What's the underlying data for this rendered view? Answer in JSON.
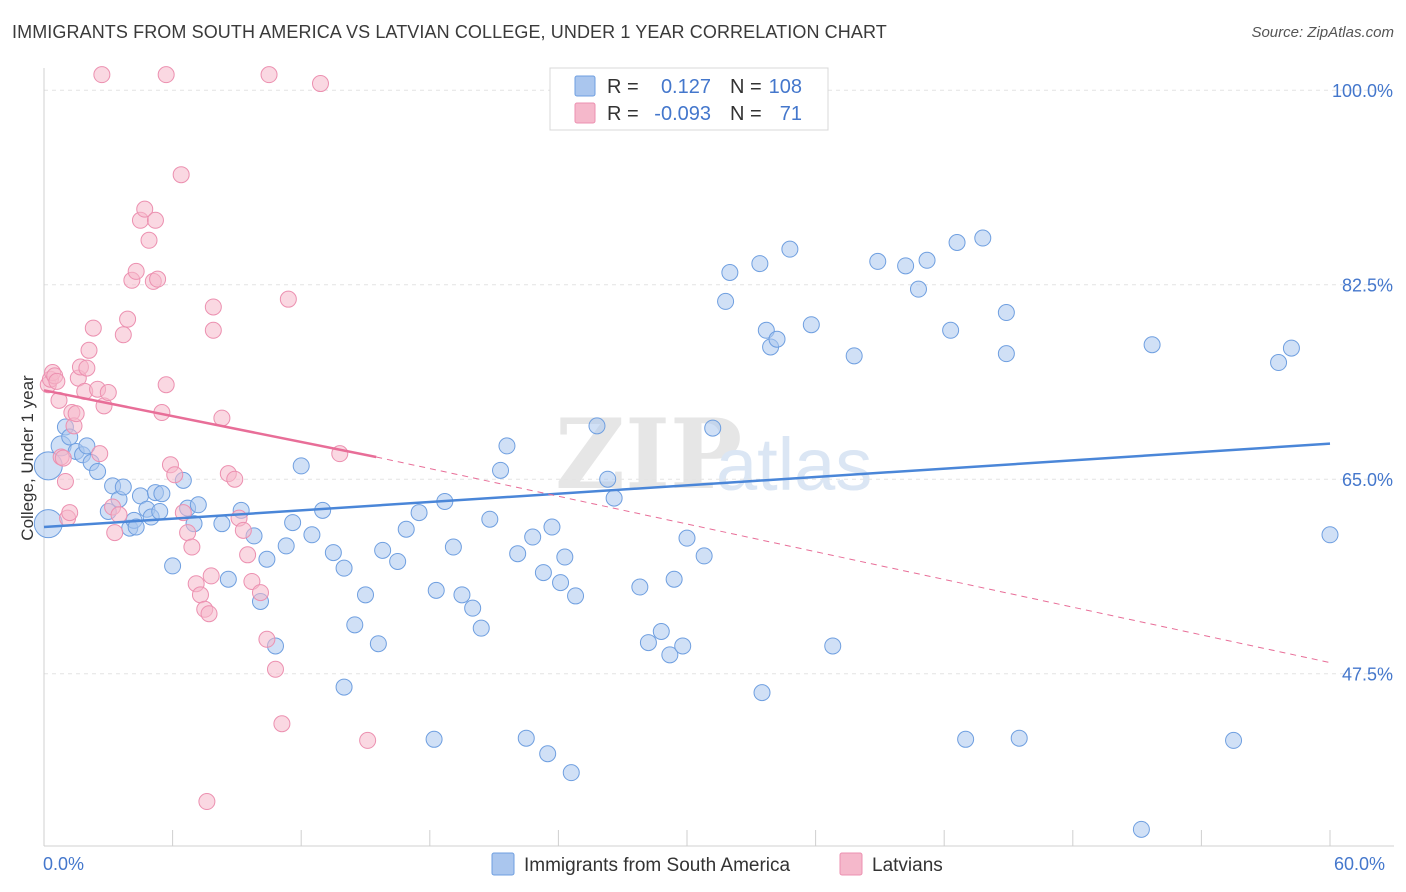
{
  "title": "IMMIGRANTS FROM SOUTH AMERICA VS LATVIAN COLLEGE, UNDER 1 YEAR CORRELATION CHART",
  "source": "Source: ZipAtlas.com",
  "watermark": {
    "zip": "ZIP",
    "atlas": "atlas"
  },
  "colors": {
    "blue": "#4a86d8",
    "blue_fill": "#aac6ee",
    "pink": "#e86e98",
    "pink_fill": "#f5b8cb",
    "tick": "#4477cc"
  },
  "legend": {
    "rows": [
      {
        "r_label": "R =",
        "r_value": "0.127",
        "n_label": "N =",
        "n_value": "108"
      },
      {
        "r_label": "R =",
        "r_value": "-0.093",
        "n_label": "N =",
        "n_value": "71"
      }
    ]
  },
  "chart_data": {
    "type": "scatter",
    "title": "IMMIGRANTS FROM SOUTH AMERICA VS LATVIAN COLLEGE, UNDER 1 YEAR CORRELATION CHART",
    "xlabel": "",
    "ylabel": "College, Under 1 year",
    "xlim": [
      0,
      60
    ],
    "ylim": [
      32,
      102
    ],
    "x_tick_labels": [
      "0.0%",
      "60.0%"
    ],
    "y_ticks": [
      47.5,
      65.0,
      82.5,
      100.0
    ],
    "y_tick_labels": [
      "47.5%",
      "65.0%",
      "82.5%",
      "100.0%"
    ],
    "legend_position": "top-center",
    "series": [
      {
        "name": "Immigrants from South America",
        "color": "#4a86d8",
        "r": 0.127,
        "n": 108,
        "trend": {
          "x0": 0,
          "y0": 60.7,
          "x1": 60,
          "y1": 68.2
        },
        "points": [
          [
            0.2,
            66.2,
            14
          ],
          [
            0.2,
            61.0,
            14
          ],
          [
            0.8,
            68.0,
            10
          ],
          [
            1.0,
            69.7,
            8
          ],
          [
            1.2,
            68.8,
            8
          ],
          [
            1.5,
            67.5,
            8
          ],
          [
            1.8,
            67.2,
            8
          ],
          [
            2.0,
            68.0,
            8
          ],
          [
            2.2,
            66.5,
            8
          ],
          [
            2.5,
            65.7,
            8
          ],
          [
            3.0,
            62.1,
            8
          ],
          [
            3.2,
            64.4,
            8
          ],
          [
            3.5,
            63.2,
            8
          ],
          [
            3.7,
            64.3,
            8
          ],
          [
            4.0,
            60.6,
            8
          ],
          [
            4.2,
            61.3,
            8
          ],
          [
            4.3,
            60.7,
            8
          ],
          [
            4.5,
            63.5,
            8
          ],
          [
            4.8,
            62.3,
            8
          ],
          [
            5.0,
            61.6,
            8
          ],
          [
            5.2,
            63.8,
            8
          ],
          [
            5.4,
            62.1,
            8
          ],
          [
            5.5,
            63.7,
            8
          ],
          [
            6.0,
            57.2,
            8
          ],
          [
            6.5,
            64.9,
            8
          ],
          [
            6.7,
            62.4,
            8
          ],
          [
            7.0,
            61.0,
            8
          ],
          [
            7.2,
            62.7,
            8
          ],
          [
            8.3,
            61.0,
            8
          ],
          [
            8.6,
            56.0,
            8
          ],
          [
            9.2,
            62.2,
            8
          ],
          [
            9.8,
            59.9,
            8
          ],
          [
            10.1,
            54.0,
            8
          ],
          [
            10.4,
            57.8,
            8
          ],
          [
            10.8,
            50.0,
            8
          ],
          [
            11.3,
            59.0,
            8
          ],
          [
            11.6,
            61.1,
            8
          ],
          [
            12.0,
            66.2,
            8
          ],
          [
            12.5,
            60.0,
            8
          ],
          [
            13.0,
            62.2,
            8
          ],
          [
            13.5,
            58.4,
            8
          ],
          [
            14.0,
            57.0,
            8
          ],
          [
            14.5,
            51.9,
            8
          ],
          [
            15.0,
            54.6,
            8
          ],
          [
            15.6,
            50.2,
            8
          ],
          [
            15.8,
            58.6,
            8
          ],
          [
            16.5,
            57.6,
            8
          ],
          [
            16.9,
            60.5,
            8
          ],
          [
            17.5,
            62.0,
            8
          ],
          [
            18.3,
            55.0,
            8
          ],
          [
            18.7,
            63.0,
            8
          ],
          [
            19.1,
            58.9,
            8
          ],
          [
            19.5,
            54.6,
            8
          ],
          [
            20.0,
            53.4,
            8
          ],
          [
            20.4,
            51.6,
            8
          ],
          [
            20.8,
            61.4,
            8
          ],
          [
            21.3,
            65.8,
            8
          ],
          [
            21.6,
            68.0,
            8
          ],
          [
            22.1,
            58.3,
            8
          ],
          [
            22.8,
            59.8,
            8
          ],
          [
            23.3,
            56.6,
            8
          ],
          [
            23.7,
            60.7,
            8
          ],
          [
            24.1,
            55.7,
            8
          ],
          [
            24.3,
            58.0,
            8
          ],
          [
            24.8,
            54.5,
            8
          ],
          [
            25.8,
            69.8,
            8
          ],
          [
            26.3,
            65.0,
            8
          ],
          [
            26.6,
            63.3,
            8
          ],
          [
            27.8,
            55.3,
            8
          ],
          [
            28.2,
            50.3,
            8
          ],
          [
            28.8,
            51.3,
            8
          ],
          [
            29.2,
            49.2,
            8
          ],
          [
            29.4,
            56.0,
            8
          ],
          [
            29.8,
            50.0,
            8
          ],
          [
            30.0,
            59.7,
            8
          ],
          [
            30.8,
            58.1,
            8
          ],
          [
            31.2,
            69.6,
            8
          ],
          [
            31.8,
            81.0,
            8
          ],
          [
            32.0,
            83.6,
            8
          ],
          [
            33.4,
            84.4,
            8
          ],
          [
            33.7,
            78.4,
            8
          ],
          [
            33.9,
            76.9,
            8
          ],
          [
            34.2,
            77.6,
            8
          ],
          [
            34.8,
            85.7,
            8
          ],
          [
            35.8,
            78.9,
            8
          ],
          [
            36.8,
            50.0,
            8
          ],
          [
            37.8,
            76.1,
            8
          ],
          [
            38.9,
            84.6,
            8
          ],
          [
            40.2,
            84.2,
            8
          ],
          [
            40.8,
            82.1,
            8
          ],
          [
            41.2,
            84.7,
            8
          ],
          [
            42.3,
            78.4,
            8
          ],
          [
            42.6,
            86.3,
            8
          ],
          [
            43.8,
            86.7,
            8
          ],
          [
            44.9,
            76.3,
            8
          ],
          [
            44.9,
            80.0,
            8
          ],
          [
            51.7,
            77.1,
            8
          ],
          [
            57.6,
            75.5,
            8
          ],
          [
            58.2,
            76.8,
            8
          ],
          [
            60.0,
            60.0,
            8
          ],
          [
            14.0,
            46.3,
            8
          ],
          [
            18.2,
            41.6,
            8
          ],
          [
            22.5,
            41.7,
            8
          ],
          [
            23.5,
            40.3,
            8
          ],
          [
            24.6,
            38.6,
            8
          ],
          [
            33.5,
            45.8,
            8
          ],
          [
            43.0,
            41.6,
            8
          ],
          [
            45.5,
            41.7,
            8
          ],
          [
            51.2,
            33.5,
            8
          ],
          [
            55.5,
            41.5,
            8
          ]
        ]
      },
      {
        "name": "Latvians",
        "color": "#e86e98",
        "r": -0.093,
        "n": 71,
        "trend": {
          "x0": 0,
          "y0": 73.0,
          "x1": 15.5,
          "y1": 67.0,
          "dashed_to_x": 60,
          "dashed_to_y": 48.5
        },
        "points": [
          [
            0.2,
            73.5,
            8
          ],
          [
            0.3,
            74.0,
            8
          ],
          [
            0.4,
            74.6,
            8
          ],
          [
            0.5,
            74.3,
            8
          ],
          [
            0.6,
            73.8,
            8
          ],
          [
            0.7,
            72.1,
            8
          ],
          [
            0.8,
            67.0,
            8
          ],
          [
            0.9,
            66.9,
            8
          ],
          [
            1.0,
            64.8,
            8
          ],
          [
            1.1,
            61.5,
            8
          ],
          [
            1.2,
            62.0,
            8
          ],
          [
            1.3,
            71.0,
            8
          ],
          [
            1.4,
            69.8,
            8
          ],
          [
            1.5,
            70.9,
            8
          ],
          [
            1.6,
            74.1,
            8
          ],
          [
            1.7,
            75.1,
            8
          ],
          [
            1.9,
            72.9,
            8
          ],
          [
            2.0,
            75.0,
            8
          ],
          [
            2.1,
            76.6,
            8
          ],
          [
            2.3,
            78.6,
            8
          ],
          [
            2.5,
            73.1,
            8
          ],
          [
            2.6,
            67.3,
            8
          ],
          [
            2.8,
            71.6,
            8
          ],
          [
            3.0,
            72.8,
            8
          ],
          [
            3.2,
            62.5,
            8
          ],
          [
            3.3,
            60.2,
            8
          ],
          [
            3.5,
            61.8,
            8
          ],
          [
            3.7,
            78.0,
            8
          ],
          [
            3.9,
            79.4,
            8
          ],
          [
            4.1,
            82.9,
            8
          ],
          [
            4.3,
            83.7,
            8
          ],
          [
            4.5,
            88.3,
            8
          ],
          [
            4.7,
            89.3,
            8
          ],
          [
            4.9,
            86.5,
            8
          ],
          [
            5.1,
            82.8,
            8
          ],
          [
            5.3,
            83.0,
            8
          ],
          [
            5.5,
            71.0,
            8
          ],
          [
            5.7,
            73.5,
            8
          ],
          [
            5.9,
            66.3,
            8
          ],
          [
            6.1,
            65.4,
            8
          ],
          [
            6.5,
            62.0,
            8
          ],
          [
            6.7,
            60.2,
            8
          ],
          [
            6.9,
            58.9,
            8
          ],
          [
            7.1,
            55.6,
            8
          ],
          [
            7.3,
            54.6,
            8
          ],
          [
            7.5,
            53.3,
            8
          ],
          [
            7.7,
            52.9,
            8
          ],
          [
            7.8,
            56.3,
            8
          ],
          [
            7.9,
            78.4,
            8
          ],
          [
            8.3,
            70.5,
            8
          ],
          [
            8.6,
            65.5,
            8
          ],
          [
            8.9,
            65.0,
            8
          ],
          [
            9.1,
            61.5,
            8
          ],
          [
            9.3,
            60.4,
            8
          ],
          [
            9.5,
            58.2,
            8
          ],
          [
            9.7,
            55.8,
            8
          ],
          [
            10.1,
            54.8,
            8
          ],
          [
            10.4,
            50.6,
            8
          ],
          [
            10.8,
            47.9,
            8
          ],
          [
            11.1,
            43.0,
            8
          ],
          [
            7.6,
            36.0,
            8
          ],
          [
            15.1,
            41.5,
            8
          ],
          [
            13.8,
            67.3,
            8
          ],
          [
            2.7,
            101.4,
            8
          ],
          [
            5.7,
            101.4,
            8
          ],
          [
            10.5,
            101.4,
            8
          ],
          [
            12.9,
            100.6,
            8
          ],
          [
            6.4,
            92.4,
            8
          ],
          [
            5.2,
            88.3,
            8
          ],
          [
            7.9,
            80.5,
            8
          ],
          [
            11.4,
            81.2,
            8
          ]
        ]
      }
    ]
  }
}
